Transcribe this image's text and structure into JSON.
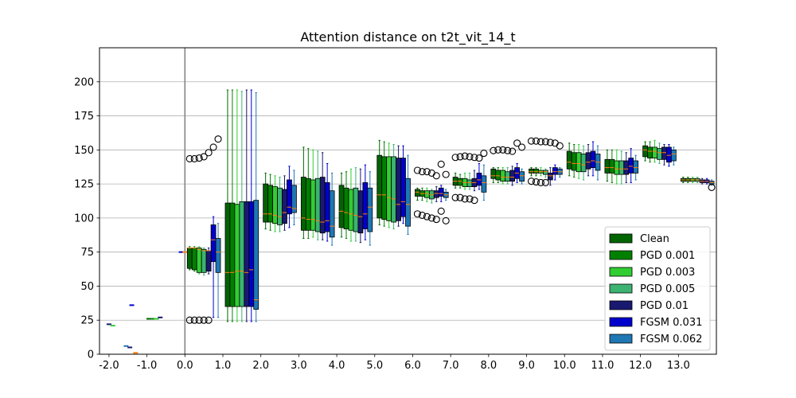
{
  "chart_data": {
    "type": "box",
    "title": "Attention distance on t2t_vit_14_t",
    "xlabel": "",
    "ylabel": "",
    "xlim": [
      -2.25,
      14.0
    ],
    "ylim": [
      0,
      225
    ],
    "x_ticks": [
      -2,
      -1,
      0,
      1,
      2,
      3,
      4,
      5,
      6,
      7,
      8,
      9,
      10,
      11,
      12,
      13
    ],
    "x_tick_labels": [
      "-2.0",
      "-1.0",
      "0.0",
      "1.0",
      "2.0",
      "3.0",
      "4.0",
      "5.0",
      "6.0",
      "7.0",
      "8.0",
      "9.0",
      "10.0",
      "11.0",
      "12.0",
      "13.0"
    ],
    "y_ticks": [
      0,
      25,
      50,
      75,
      100,
      125,
      150,
      175,
      200
    ],
    "y_tick_labels": [
      "0",
      "25",
      "50",
      "75",
      "100",
      "125",
      "150",
      "175",
      "200"
    ],
    "vline_x": 0,
    "grid": "horizontal",
    "legend_position": "lower-right",
    "offsets": [
      0.125,
      0.25,
      0.375,
      0.5,
      0.625,
      0.75,
      0.875
    ],
    "box_width": 0.125,
    "series": [
      {
        "name": "Clean",
        "color": "#006400"
      },
      {
        "name": "PGD 0.001",
        "color": "#008000"
      },
      {
        "name": "PGD 0.003",
        "color": "#32cd32"
      },
      {
        "name": "PGD 0.005",
        "color": "#3cb371"
      },
      {
        "name": "PGD 0.01",
        "color": "#191970"
      },
      {
        "name": "FGSM 0.031",
        "color": "#0000cd"
      },
      {
        "name": "FGSM 0.062",
        "color": "#1f77b4"
      }
    ],
    "blocks": [
      {
        "x": 0,
        "stats": [
          [
            62,
            63,
            78,
            78,
            79
          ],
          [
            61,
            62,
            78,
            78,
            79
          ],
          [
            59,
            60,
            77,
            78,
            79
          ],
          [
            58,
            60,
            76,
            77,
            78
          ],
          [
            59,
            61,
            76,
            76,
            78
          ],
          [
            27,
            68,
            84,
            95,
            101
          ],
          [
            27,
            60,
            75,
            85,
            96
          ]
        ],
        "outliers_upper": [
          [
            143.5
          ],
          [
            143.5
          ],
          [
            144
          ],
          [
            145
          ],
          [
            148
          ],
          [
            152
          ],
          [
            158
          ]
        ],
        "outliers_lower": [
          [
            25
          ],
          [
            25
          ],
          [
            25
          ],
          [
            25
          ],
          [
            25
          ],
          [],
          []
        ]
      },
      {
        "x": 1,
        "stats": [
          [
            24,
            35,
            60,
            111,
            194
          ],
          [
            24,
            35,
            60,
            111,
            194
          ],
          [
            24,
            35,
            61,
            110,
            194
          ],
          [
            24,
            35,
            61,
            112,
            193
          ],
          [
            24,
            35,
            60,
            112,
            194
          ],
          [
            24,
            35,
            62,
            112,
            194
          ],
          [
            24,
            33,
            40,
            113,
            192
          ]
        ],
        "outliers_upper": [
          [],
          [],
          [],
          [],
          [],
          [],
          []
        ],
        "outliers_lower": [
          [],
          [],
          [],
          [],
          [],
          [],
          []
        ]
      },
      {
        "x": 2,
        "stats": [
          [
            92,
            97,
            103,
            125,
            133
          ],
          [
            91,
            97,
            103,
            124,
            132
          ],
          [
            90,
            96,
            102,
            123,
            131
          ],
          [
            90,
            95,
            101,
            122,
            130
          ],
          [
            91,
            96,
            104,
            121,
            131
          ],
          [
            93,
            103,
            108,
            128,
            138
          ],
          [
            95,
            104,
            107,
            124,
            135
          ]
        ],
        "outliers_upper": [
          [],
          [],
          [],
          [],
          [],
          [],
          []
        ],
        "outliers_lower": [
          [],
          [],
          [],
          [],
          [],
          [],
          []
        ]
      },
      {
        "x": 3,
        "stats": [
          [
            85,
            91,
            100,
            130,
            152
          ],
          [
            85,
            91,
            99,
            129,
            151
          ],
          [
            86,
            91,
            99,
            128,
            150
          ],
          [
            84,
            90,
            98,
            129,
            149
          ],
          [
            84,
            89,
            97,
            130,
            148
          ],
          [
            83,
            90,
            98,
            126,
            140
          ],
          [
            80,
            86,
            94,
            120,
            133
          ]
        ],
        "outliers_upper": [
          [],
          [],
          [],
          [],
          [],
          [],
          []
        ],
        "outliers_lower": [
          [],
          [],
          [],
          [],
          [],
          [],
          []
        ]
      },
      {
        "x": 4,
        "stats": [
          [
            86,
            93,
            105,
            124,
            133
          ],
          [
            85,
            92,
            104,
            122,
            134
          ],
          [
            83,
            91,
            103,
            121,
            136
          ],
          [
            83,
            90,
            102,
            122,
            137
          ],
          [
            82,
            89,
            101,
            120,
            136
          ],
          [
            84,
            92,
            103,
            126,
            139
          ],
          [
            80,
            90,
            108,
            122,
            134
          ]
        ],
        "outliers_upper": [
          [],
          [],
          [],
          [],
          [],
          [],
          []
        ],
        "outliers_lower": [
          [],
          [],
          [],
          [],
          [],
          [],
          []
        ]
      },
      {
        "x": 5,
        "stats": [
          [
            95,
            100,
            117,
            146,
            157
          ],
          [
            94,
            99,
            117,
            145,
            156
          ],
          [
            93,
            98,
            115,
            145,
            155
          ],
          [
            92,
            97,
            114,
            145,
            154
          ],
          [
            94,
            98,
            110,
            144,
            153
          ],
          [
            96,
            101,
            112,
            144,
            153
          ],
          [
            88,
            94,
            110,
            129,
            146
          ]
        ],
        "outliers_upper": [
          [],
          [],
          [],
          [],
          [],
          [],
          []
        ],
        "outliers_lower": [
          [],
          [],
          [],
          [],
          [],
          [],
          []
        ]
      },
      {
        "x": 6,
        "stats": [
          [
            113,
            116,
            119,
            121,
            122
          ],
          [
            113,
            116,
            118,
            120,
            122
          ],
          [
            112,
            115,
            118,
            120,
            122
          ],
          [
            111,
            114,
            117,
            120,
            121
          ],
          [
            112,
            115,
            118,
            120,
            123
          ],
          [
            112,
            116,
            118,
            122,
            124
          ],
          [
            113,
            115,
            117,
            119,
            121
          ]
        ],
        "outliers_upper": [
          [
            135
          ],
          [
            134
          ],
          [
            134
          ],
          [
            133
          ],
          [
            131
          ],
          [
            139.5
          ],
          [
            132
          ]
        ],
        "outliers_lower": [
          [
            103
          ],
          [
            102
          ],
          [
            101
          ],
          [
            100
          ],
          [
            99
          ],
          [
            105
          ],
          [
            98
          ]
        ]
      },
      {
        "x": 7,
        "stats": [
          [
            122,
            124,
            127,
            130,
            133
          ],
          [
            122,
            124,
            127,
            129,
            132
          ],
          [
            121,
            123,
            126,
            129,
            133
          ],
          [
            121,
            123,
            126,
            128,
            133
          ],
          [
            120,
            123,
            126,
            129,
            135
          ],
          [
            121,
            124,
            128,
            133,
            140
          ],
          [
            113,
            119,
            126,
            131,
            139
          ]
        ],
        "outliers_upper": [
          [
            144.5
          ],
          [
            145
          ],
          [
            145.5
          ],
          [
            145
          ],
          [
            144.5
          ],
          [
            144
          ],
          [
            147.5
          ]
        ],
        "outliers_lower": [
          [
            115
          ],
          [
            115
          ],
          [
            114
          ],
          [
            114
          ],
          [
            113
          ],
          [],
          []
        ]
      },
      {
        "x": 8,
        "stats": [
          [
            126,
            129,
            131,
            136,
            137
          ],
          [
            126,
            128,
            131,
            135,
            137
          ],
          [
            125,
            127,
            130,
            135,
            137
          ],
          [
            125,
            127,
            130,
            134,
            137
          ],
          [
            124,
            127,
            130,
            135,
            138
          ],
          [
            126,
            129,
            133,
            137,
            140
          ],
          [
            125,
            127,
            131,
            134,
            136
          ]
        ],
        "outliers_upper": [
          [
            149.5
          ],
          [
            150
          ],
          [
            150
          ],
          [
            149.5
          ],
          [
            149
          ],
          [
            155
          ],
          [
            152
          ]
        ],
        "outliers_lower": [
          [],
          [],
          [],
          [],
          [],
          [],
          []
        ]
      },
      {
        "x": 9,
        "stats": [
          [
            131,
            133,
            134,
            136,
            137
          ],
          [
            131,
            133,
            134,
            136,
            137
          ],
          [
            131,
            133,
            134,
            135,
            137
          ],
          [
            130,
            132,
            134,
            135,
            136
          ],
          [
            124,
            128,
            131,
            133,
            137
          ],
          [
            128,
            132,
            134,
            137,
            139
          ],
          [
            130,
            132,
            134,
            136,
            137
          ]
        ],
        "outliers_upper": [
          [
            156.5
          ],
          [
            156.5
          ],
          [
            156
          ],
          [
            156
          ],
          [
            155.5
          ],
          [
            155
          ],
          [
            153
          ]
        ],
        "outliers_lower": [
          [
            127
          ],
          [
            126.5
          ],
          [
            126
          ],
          [
            126
          ],
          [],
          [],
          []
        ]
      },
      {
        "x": 10,
        "stats": [
          [
            131,
            136,
            141,
            149,
            155
          ],
          [
            130,
            135,
            140,
            148,
            154
          ],
          [
            129,
            134,
            140,
            148,
            154
          ],
          [
            128,
            134,
            139,
            147,
            153
          ],
          [
            131,
            136,
            141,
            148,
            154
          ],
          [
            131,
            137,
            142,
            149,
            156
          ],
          [
            128,
            135,
            141,
            147,
            153
          ]
        ],
        "outliers_upper": [
          [],
          [],
          [],
          [],
          [],
          [],
          []
        ],
        "outliers_lower": [
          [],
          [],
          [],
          [],
          [],
          [],
          []
        ]
      },
      {
        "x": 11,
        "stats": [
          [
            127,
            133,
            137,
            143,
            150
          ],
          [
            126,
            133,
            137,
            143,
            150
          ],
          [
            125,
            132,
            136,
            142,
            150
          ],
          [
            125,
            132,
            136,
            142,
            149
          ],
          [
            126,
            132,
            136,
            142,
            148
          ],
          [
            126,
            133,
            138,
            144,
            151
          ],
          [
            128,
            133,
            137,
            142,
            146
          ]
        ],
        "outliers_upper": [
          [],
          [],
          [],
          [],
          [],
          [],
          []
        ],
        "outliers_lower": [
          [],
          [],
          [],
          [],
          [],
          [],
          []
        ]
      },
      {
        "x": 12,
        "stats": [
          [
            142,
            145,
            150,
            153,
            156
          ],
          [
            141,
            144,
            149,
            152,
            156
          ],
          [
            141,
            144,
            149,
            152,
            157
          ],
          [
            140,
            143,
            148,
            151,
            155
          ],
          [
            139,
            143,
            148,
            152,
            154
          ],
          [
            138,
            141,
            146,
            152,
            154
          ],
          [
            139,
            142,
            147,
            150,
            152
          ]
        ],
        "outliers_upper": [
          [],
          [],
          [],
          [],
          [],
          [],
          []
        ],
        "outliers_lower": [
          [],
          [],
          [],
          [],
          [],
          [],
          []
        ]
      },
      {
        "x": 13,
        "stats": [
          [
            126,
            127,
            128,
            129,
            130
          ],
          [
            126,
            127,
            128,
            129,
            130
          ],
          [
            126,
            127,
            128,
            129,
            130
          ],
          [
            126,
            127,
            128,
            129,
            130
          ],
          [
            125,
            126,
            127,
            128,
            129
          ],
          [
            125,
            126,
            127,
            128,
            129
          ],
          [
            124,
            125,
            126,
            127,
            128
          ]
        ],
        "outliers_upper": [
          [],
          [],
          [],
          [],
          [],
          [],
          []
        ],
        "outliers_lower": [
          [],
          [],
          [],
          [],
          [],
          [],
          [
            122.5
          ]
        ]
      }
    ],
    "small_segments": [
      {
        "x": -2.0,
        "y": 22,
        "color": "#191970"
      },
      {
        "x": -1.9,
        "y": 21,
        "color": "#32cd32"
      },
      {
        "x": -1.55,
        "y": 6,
        "color": "#1f77b4"
      },
      {
        "x": -1.45,
        "y": 5,
        "color": "#191970"
      },
      {
        "x": -1.4,
        "y": 36,
        "color": "#0000cd"
      },
      {
        "x": -1.3,
        "y": 1,
        "color": "#ff7f0e"
      },
      {
        "x": -0.95,
        "y": 26,
        "color": "#006400"
      },
      {
        "x": -0.85,
        "y": 26,
        "color": "#008000"
      },
      {
        "x": -0.75,
        "y": 26,
        "color": "#32cd32"
      },
      {
        "x": -0.65,
        "y": 27,
        "color": "#191970"
      },
      {
        "x": -0.1,
        "y": 75,
        "color": "#0000cd"
      },
      {
        "x": 0.0,
        "y": 75,
        "color": "#ff7f0e"
      }
    ]
  }
}
